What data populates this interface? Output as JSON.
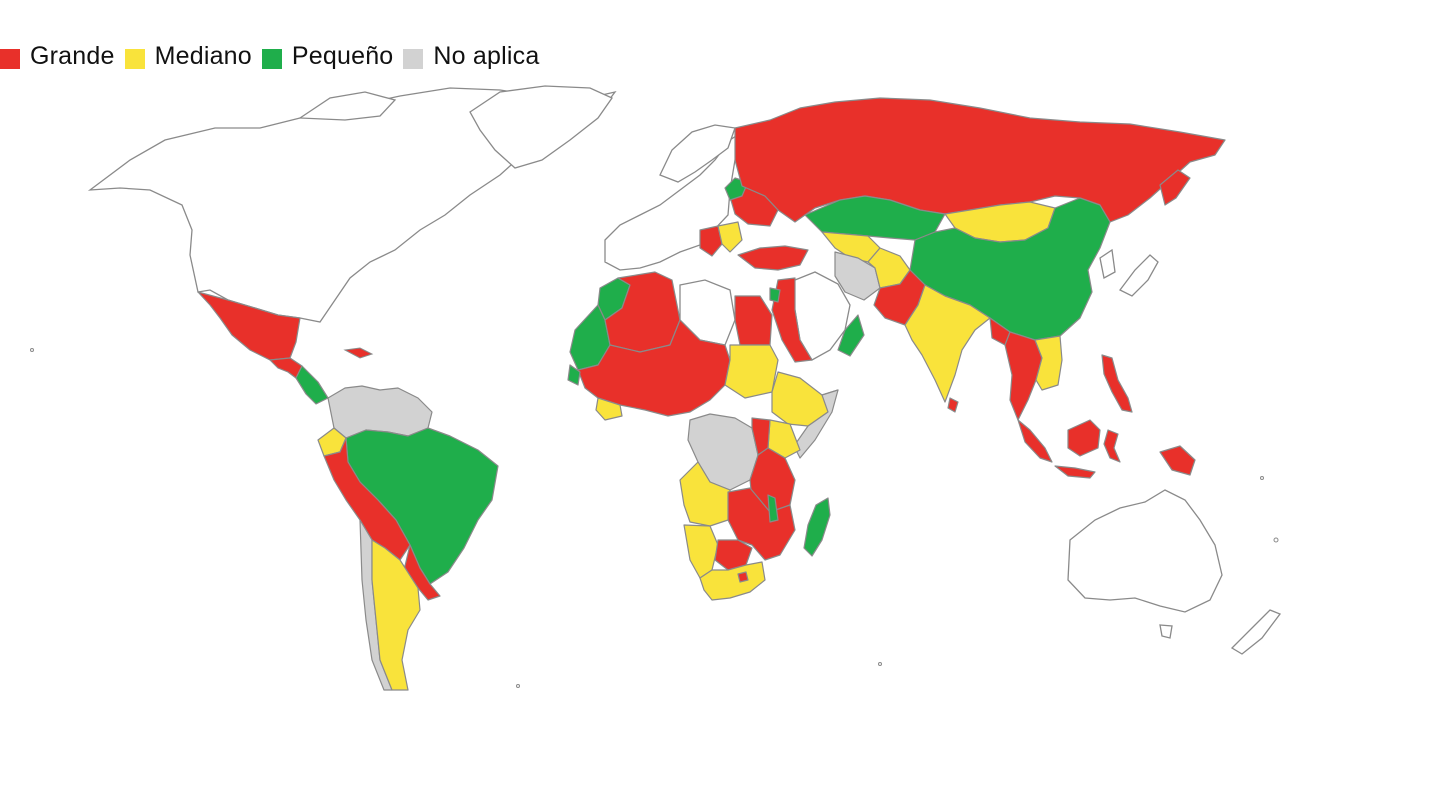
{
  "legend": [
    {
      "key": "grande",
      "label": "Grande",
      "color": "#e8302a"
    },
    {
      "key": "mediano",
      "label": "Mediano",
      "color": "#f9e33b"
    },
    {
      "key": "pequeno",
      "label": "Pequeño",
      "color": "#1fae4b"
    },
    {
      "key": "no_aplica",
      "label": "No aplica",
      "color": "#d2d2d2"
    }
  ],
  "colors": {
    "grande": "#e8302a",
    "mediano": "#f9e33b",
    "pequeno": "#1fae4b",
    "no_aplica": "#d2d2d2",
    "sin_dato": "#ffffff",
    "border": "#8a8a8a"
  }
}
